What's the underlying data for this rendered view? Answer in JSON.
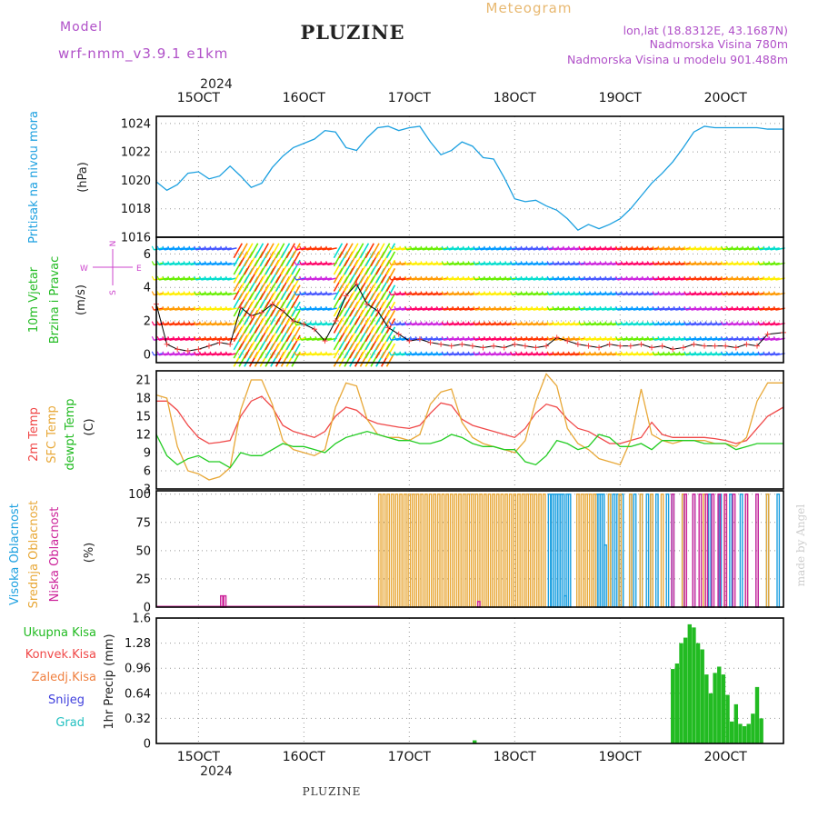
{
  "header": {
    "model_label": "Model",
    "model_name": "wrf-nmm_v3.9.1  e1km",
    "station": "PLUZINE",
    "meteogram_label": "Meteogram",
    "lonlat": "lon,lat (18.8312E, 43.1687N)",
    "elevation": "Nadmorska Visina 780m",
    "model_elevation": "Nadmorska Visina u modelu 901.488m"
  },
  "footer": {
    "station": "PLUZINE",
    "credit": "made by Angel"
  },
  "colors": {
    "pressure": "#1ca0e0",
    "temp2m": "#f04848",
    "sfc_temp": "#e8a838",
    "dewpoint": "#22cc22",
    "high_cloud": "#1ca0e0",
    "mid_cloud": "#e8a838",
    "low_cloud": "#cc2299",
    "total_precip": "#22bb22",
    "conv_precip": "#f04848",
    "frozen_precip": "#f08040",
    "snow": "#4040dd",
    "graupel": "#22c0c0",
    "wind_speed_line": "#000000",
    "gust_marks": "#ff4040",
    "axis_label": "#cc44cc"
  },
  "time_axis": {
    "start_day": 14.6,
    "end_day": 20.55,
    "tick_days": [
      15,
      16,
      17,
      18,
      19,
      20
    ],
    "tick_labels": [
      "15OCT",
      "16OCT",
      "17OCT",
      "18OCT",
      "19OCT",
      "20OCT"
    ],
    "year": "2024"
  },
  "chart_data": [
    {
      "type": "line",
      "panel": "pressure",
      "ylabel": "Pritisak na nivou mora",
      "unit": "(hPa)",
      "ylim": [
        1016,
        1024.5
      ],
      "yticks": [
        1016,
        1018,
        1020,
        1022,
        1024
      ],
      "grid": true,
      "series": [
        {
          "x": [
            14.6,
            14.7,
            14.8,
            14.9,
            15.0,
            15.1,
            15.2,
            15.3,
            15.4,
            15.5,
            15.6,
            15.7,
            15.8,
            15.9,
            16.0,
            16.1,
            16.2,
            16.3,
            16.4,
            16.5,
            16.6,
            16.7,
            16.8,
            16.9,
            17.0,
            17.1,
            17.2,
            17.3,
            17.4,
            17.5,
            17.6,
            17.7,
            17.8,
            17.9,
            18.0,
            18.1,
            18.2,
            18.3,
            18.4,
            18.5,
            18.6,
            18.7,
            18.8,
            18.9,
            19.0,
            19.1,
            19.2,
            19.3,
            19.4,
            19.5,
            19.6,
            19.7,
            19.8,
            19.9,
            20.0,
            20.1,
            20.2,
            20.3,
            20.4,
            20.55
          ],
          "y": [
            1019.9,
            1019.3,
            1019.7,
            1020.5,
            1020.6,
            1020.1,
            1020.3,
            1021.0,
            1020.3,
            1019.5,
            1019.8,
            1020.9,
            1021.7,
            1022.3,
            1022.6,
            1022.9,
            1023.5,
            1023.4,
            1022.3,
            1022.1,
            1023.0,
            1023.7,
            1023.8,
            1023.5,
            1023.7,
            1023.8,
            1022.7,
            1021.8,
            1022.1,
            1022.7,
            1022.4,
            1021.6,
            1021.5,
            1020.2,
            1018.7,
            1018.5,
            1018.6,
            1018.2,
            1017.9,
            1017.3,
            1016.5,
            1016.9,
            1016.6,
            1016.9,
            1017.3,
            1018.0,
            1018.9,
            1019.8,
            1020.5,
            1021.3,
            1022.3,
            1023.4,
            1023.8,
            1023.7,
            1023.7,
            1023.7,
            1023.7,
            1023.7,
            1023.6,
            1023.6
          ]
        }
      ]
    },
    {
      "type": "wind",
      "panel": "wind",
      "ylabel": [
        "10m Vjetar",
        "Brzina i Pravac"
      ],
      "unit": "(m/s)",
      "direction_legend": {
        "n": "N",
        "s": "S",
        "e": "E",
        "w": "W"
      },
      "ylim": [
        -0.5,
        7
      ],
      "yticks": [
        0,
        2,
        4,
        6
      ],
      "grid": true,
      "series": [
        {
          "name": "speed",
          "x": [
            14.6,
            14.7,
            14.8,
            14.9,
            15.0,
            15.1,
            15.2,
            15.3,
            15.4,
            15.5,
            15.6,
            15.7,
            15.8,
            15.9,
            16.0,
            16.1,
            16.2,
            16.3,
            16.4,
            16.5,
            16.6,
            16.7,
            16.8,
            16.9,
            17.0,
            17.1,
            17.2,
            17.3,
            17.4,
            17.5,
            17.6,
            17.7,
            17.8,
            17.9,
            18.0,
            18.1,
            18.2,
            18.3,
            18.4,
            18.5,
            18.6,
            18.7,
            18.8,
            18.9,
            19.0,
            19.1,
            19.2,
            19.3,
            19.4,
            19.5,
            19.6,
            19.7,
            19.8,
            19.9,
            20.0,
            20.1,
            20.2,
            20.3,
            20.4,
            20.55
          ],
          "y": [
            3.0,
            0.6,
            0.3,
            0.2,
            0.3,
            0.5,
            0.7,
            0.6,
            2.8,
            2.3,
            2.5,
            3.0,
            2.6,
            2.0,
            1.8,
            1.5,
            0.8,
            2.0,
            3.5,
            4.2,
            3.0,
            2.6,
            1.6,
            1.2,
            0.8,
            0.9,
            0.7,
            0.6,
            0.5,
            0.6,
            0.5,
            0.4,
            0.5,
            0.4,
            0.6,
            0.5,
            0.4,
            0.5,
            1.0,
            0.8,
            0.6,
            0.5,
            0.4,
            0.6,
            0.5,
            0.5,
            0.6,
            0.4,
            0.5,
            0.3,
            0.4,
            0.6,
            0.5,
            0.5,
            0.5,
            0.4,
            0.6,
            0.5,
            1.2,
            1.3
          ]
        }
      ]
    },
    {
      "type": "line",
      "panel": "temperature",
      "ylabel": [
        "2m Temp",
        "SFC Temp",
        "dewpt Temp"
      ],
      "unit": "(C)",
      "ylim": [
        3,
        22.5
      ],
      "yticks": [
        3,
        6,
        9,
        12,
        15,
        18,
        21
      ],
      "grid": true,
      "x": [
        14.6,
        14.7,
        14.8,
        14.9,
        15.0,
        15.1,
        15.2,
        15.3,
        15.4,
        15.5,
        15.6,
        15.7,
        15.8,
        15.9,
        16.0,
        16.1,
        16.2,
        16.3,
        16.4,
        16.5,
        16.6,
        16.7,
        16.8,
        16.9,
        17.0,
        17.1,
        17.2,
        17.3,
        17.4,
        17.5,
        17.6,
        17.7,
        17.8,
        17.9,
        18.0,
        18.1,
        18.2,
        18.3,
        18.4,
        18.5,
        18.6,
        18.7,
        18.8,
        18.9,
        19.0,
        19.1,
        19.2,
        19.3,
        19.4,
        19.5,
        19.6,
        19.7,
        19.8,
        19.9,
        20.0,
        20.1,
        20.2,
        20.3,
        20.4,
        20.55
      ],
      "series": [
        {
          "name": "2m Temp",
          "y": [
            17.5,
            17.5,
            16.0,
            13.5,
            11.5,
            10.5,
            10.7,
            11.0,
            15.0,
            17.5,
            18.3,
            16.5,
            13.5,
            12.5,
            12.0,
            11.5,
            12.5,
            15.0,
            16.5,
            16.0,
            14.5,
            13.8,
            13.5,
            13.2,
            13.0,
            13.5,
            15.5,
            17.2,
            16.8,
            14.5,
            13.5,
            13.0,
            12.5,
            12.0,
            11.5,
            13.0,
            15.5,
            17.0,
            16.5,
            14.5,
            13.0,
            12.5,
            11.5,
            10.5,
            10.5,
            11.0,
            11.5,
            14.0,
            12.0,
            11.5,
            11.5,
            11.5,
            11.5,
            11.3,
            11.0,
            10.5,
            11.0,
            13.0,
            15.0,
            16.5
          ]
        },
        {
          "name": "SFC Temp",
          "y": [
            18.5,
            18.0,
            10.0,
            6.0,
            5.5,
            4.5,
            5.0,
            6.5,
            16.0,
            21.0,
            21.0,
            17.0,
            11.0,
            9.5,
            9.0,
            8.5,
            9.5,
            16.5,
            20.5,
            20.0,
            14.5,
            12.0,
            11.5,
            11.5,
            11.0,
            12.0,
            17.0,
            19.0,
            19.5,
            14.0,
            11.5,
            10.5,
            10.0,
            9.5,
            9.0,
            11.0,
            17.5,
            22.0,
            20.0,
            13.0,
            10.5,
            9.5,
            8.0,
            7.5,
            7.0,
            11.0,
            19.5,
            12.0,
            11.0,
            10.5,
            11.0,
            11.0,
            11.0,
            10.5,
            10.5,
            10.0,
            11.5,
            17.5,
            20.5,
            20.5
          ]
        },
        {
          "name": "dewpt Temp",
          "y": [
            12.0,
            8.5,
            7.0,
            8.0,
            8.5,
            7.5,
            7.5,
            6.5,
            9.0,
            8.5,
            8.5,
            9.5,
            10.5,
            10.0,
            10.0,
            9.5,
            9.0,
            10.5,
            11.5,
            12.0,
            12.5,
            12.0,
            11.5,
            11.0,
            11.0,
            10.5,
            10.5,
            11.0,
            12.0,
            11.5,
            10.5,
            10.0,
            10.0,
            9.5,
            9.5,
            7.5,
            7.0,
            8.5,
            11.0,
            10.5,
            9.5,
            10.0,
            12.0,
            11.5,
            10.0,
            10.0,
            10.5,
            9.5,
            11.0,
            11.0,
            11.0,
            11.0,
            10.5,
            10.5,
            10.5,
            9.5,
            10.0,
            10.5,
            10.5,
            10.5
          ]
        }
      ]
    },
    {
      "type": "bar",
      "panel": "cloud",
      "ylabel": [
        "Visoka Oblacnost",
        "Srednja Oblacnost",
        "Niska Oblacnost"
      ],
      "unit": "(%)",
      "ylim": [
        0,
        103
      ],
      "yticks": [
        0,
        25,
        50,
        75,
        100
      ],
      "grid": true,
      "series": [
        {
          "name": "Visoka Oblacnost",
          "x": [
            18.33,
            18.36,
            18.38,
            18.4,
            18.42,
            18.44,
            18.46,
            18.48,
            18.5,
            18.52,
            18.78,
            18.8,
            18.82,
            18.84,
            18.86,
            18.9,
            18.94,
            18.98,
            19.0,
            19.02,
            19.1,
            19.14,
            19.2,
            19.26,
            19.3,
            19.35,
            19.45,
            19.5,
            19.6,
            19.7,
            19.85,
            19.95,
            20.05,
            20.15,
            20.3,
            20.4,
            20.5
          ],
          "y": [
            100,
            100,
            100,
            100,
            100,
            100,
            100,
            10,
            100,
            100,
            100,
            100,
            100,
            100,
            55,
            100,
            100,
            100,
            50,
            100,
            100,
            100,
            100,
            100,
            100,
            100,
            100,
            100,
            100,
            100,
            100,
            100,
            100,
            100,
            100,
            100,
            100
          ]
        },
        {
          "name": "Srednja Oblacnost",
          "x": [
            16.72,
            16.76,
            16.8,
            16.84,
            16.88,
            16.92,
            16.96,
            17.0,
            17.04,
            17.08,
            17.12,
            17.16,
            17.2,
            17.24,
            17.28,
            17.32,
            17.36,
            17.4,
            17.44,
            17.48,
            17.52,
            17.56,
            17.6,
            17.64,
            17.68,
            17.72,
            17.76,
            17.8,
            17.84,
            17.88,
            17.92,
            17.96,
            18.0,
            18.04,
            18.08,
            18.12,
            18.16,
            18.2,
            18.24,
            18.28,
            18.6,
            18.64,
            18.68,
            18.72,
            18.76,
            18.9,
            19.0,
            19.1,
            19.2,
            19.3,
            19.4,
            19.6,
            19.8,
            20.0,
            20.2,
            20.4
          ],
          "y": [
            100,
            100,
            100,
            100,
            100,
            100,
            100,
            100,
            100,
            100,
            100,
            100,
            100,
            100,
            100,
            100,
            100,
            100,
            100,
            100,
            100,
            100,
            100,
            100,
            100,
            100,
            100,
            100,
            100,
            100,
            100,
            100,
            100,
            100,
            100,
            100,
            100,
            100,
            100,
            100,
            100,
            100,
            100,
            100,
            100,
            100,
            100,
            100,
            100,
            100,
            100,
            100,
            100,
            100,
            100,
            100
          ]
        },
        {
          "name": "Niska Oblacnost",
          "x": [
            15.22,
            15.25,
            17.66,
            19.5,
            19.62,
            19.7,
            19.76,
            19.82,
            19.88,
            19.94,
            20.0,
            20.08,
            20.2,
            20.3
          ],
          "y": [
            10,
            10,
            5,
            100,
            100,
            100,
            100,
            100,
            100,
            100,
            100,
            100,
            100,
            100
          ]
        }
      ]
    },
    {
      "type": "bar",
      "panel": "precip",
      "ylabel": "1hr Precip (mm)",
      "legend": [
        "Ukupna  Kisa",
        "Konvek.Kisa",
        "Zaledj.Kisa",
        "Snijeg",
        "Grad"
      ],
      "ylim": [
        0,
        1.6
      ],
      "yticks": [
        0,
        0.32,
        0.64,
        0.96,
        1.28,
        1.6
      ],
      "grid": true,
      "series": [
        {
          "name": "Ukupna  Kisa",
          "x": [
            17.62,
            19.5,
            19.54,
            19.58,
            19.62,
            19.66,
            19.7,
            19.74,
            19.78,
            19.82,
            19.86,
            19.9,
            19.94,
            19.98,
            20.02,
            20.06,
            20.1,
            20.14,
            20.18,
            20.22,
            20.26,
            20.3,
            20.34
          ],
          "y": [
            0.04,
            0.95,
            1.02,
            1.28,
            1.35,
            1.52,
            1.48,
            1.28,
            1.2,
            0.88,
            0.64,
            0.9,
            0.98,
            0.88,
            0.62,
            0.28,
            0.5,
            0.25,
            0.22,
            0.25,
            0.38,
            0.72,
            0.32
          ]
        }
      ]
    }
  ]
}
